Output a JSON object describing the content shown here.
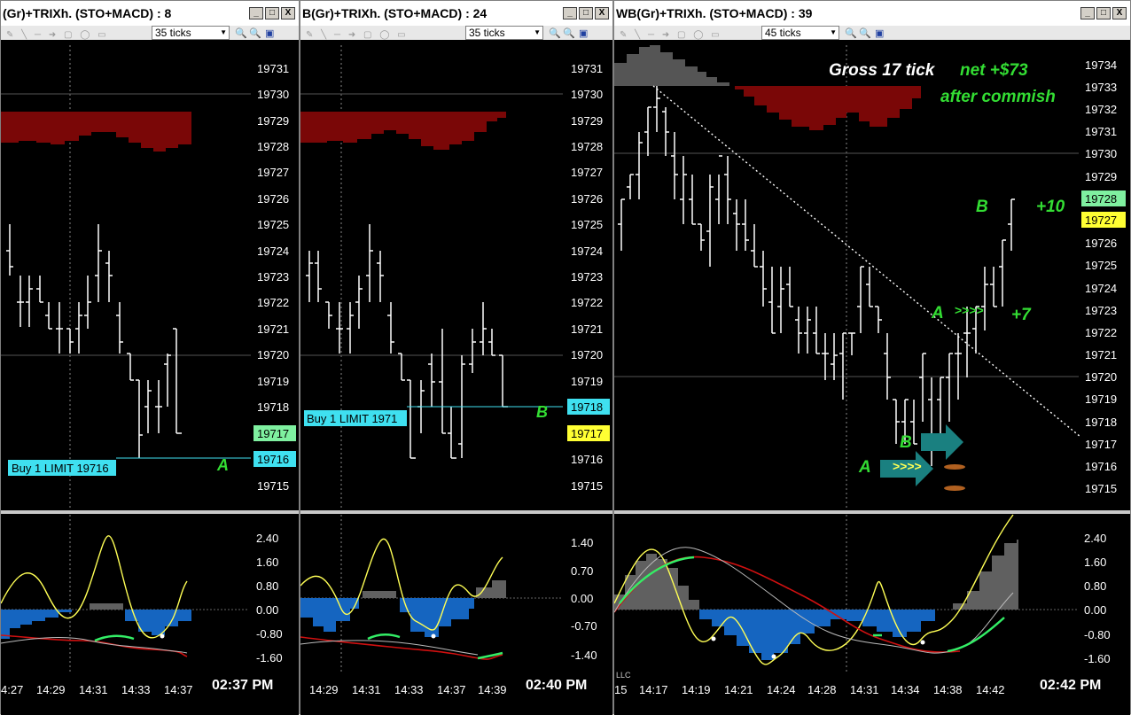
{
  "colors": {
    "price_line": "#ffffff",
    "red_histogram": "#7a0707",
    "gray_histogram": "#555555",
    "order_cyan": "#3fe0f0",
    "price_green": "#7ff0a0",
    "price_yellow": "#ffff33",
    "annotation_green": "#33dd33",
    "trix_yellow": "#ffff55",
    "macd_blue": "#1565c0",
    "macd_gray": "#606060",
    "arrow_teal": "#1a8080",
    "signal_red": "#d01010",
    "signal_green": "#33ee66"
  },
  "windows": [
    {
      "title": "(Gr)+TRIXh.  (STO+MACD) : 8",
      "ticks": "35 ticks",
      "buttons": [
        "_",
        "□",
        "X"
      ],
      "price_labels": [
        "19731",
        "19730",
        "19729",
        "19728",
        "19727",
        "19726",
        "19725",
        "19724",
        "19723",
        "19722",
        "19721",
        "19720",
        "19719",
        "19718",
        "19717",
        "19716",
        "19715"
      ],
      "current_price": "19717",
      "order_price": "19716",
      "order_label": "Buy 1 LIMIT 19716",
      "annotation": "A",
      "osc_labels": [
        "2.40",
        "1.60",
        "0.80",
        "0.00",
        "-0.80",
        "-1.60"
      ],
      "time_labels": [
        "4:27",
        "14:29",
        "14:31",
        "14:33",
        "14:37"
      ],
      "clock": "02:37 PM"
    },
    {
      "title": "B(Gr)+TRIXh.  (STO+MACD) : 24",
      "ticks": "35 ticks",
      "buttons": [
        "_",
        "□",
        "X"
      ],
      "price_labels": [
        "19731",
        "19730",
        "19729",
        "19728",
        "19727",
        "19726",
        "19725",
        "19724",
        "19723",
        "19722",
        "19721",
        "19720",
        "19719",
        "19718",
        "19717",
        "19716",
        "19715"
      ],
      "current_price": "19717",
      "order_price": "19718",
      "order_label": "Buy 1 LIMIT 1971",
      "annotation": "B",
      "osc_labels": [
        "1.40",
        "0.70",
        "0.00",
        "-0.70",
        "-1.40"
      ],
      "time_labels": [
        "14:29",
        "14:31",
        "14:33",
        "14:37",
        "14:39"
      ],
      "clock": "02:40 PM"
    },
    {
      "title": "WB(Gr)+TRIXh.  (STO+MACD) : 39",
      "ticks": "45 ticks",
      "buttons": [
        "_",
        "□",
        "X"
      ],
      "price_labels": [
        "19734",
        "19733",
        "19732",
        "19731",
        "19730",
        "19729",
        "19728",
        "19727",
        "19726",
        "19725",
        "19724",
        "19723",
        "19722",
        "19721",
        "19720",
        "19719",
        "19718",
        "19717",
        "19716",
        "19715"
      ],
      "price_green": "19728",
      "price_yellow": "19727",
      "gross_text": "Gross 17 tick",
      "net_text": "net  +$73",
      "commish_text": "after commish",
      "b_label": "B",
      "plus10": "+10",
      "a_label": "A",
      "arrows_text": ">>>>",
      "plus7": "+7",
      "a_label2": "A",
      "arrows_text2": ">>>>",
      "b_label2": "B",
      "llc_text": "LLC",
      "osc_labels": [
        "2.40",
        "1.60",
        "0.80",
        "0.00",
        "-0.80",
        "-1.60"
      ],
      "time_labels": [
        "15",
        "14:17",
        "14:19",
        "14:21",
        "14:24",
        "14:28",
        "14:31",
        "14:34",
        "14:38",
        "14:42"
      ],
      "clock": "02:42 PM"
    }
  ]
}
